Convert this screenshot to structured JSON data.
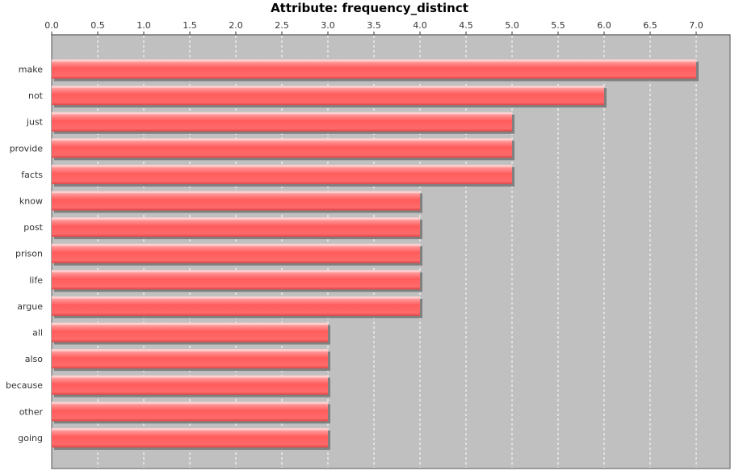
{
  "chart_data": {
    "type": "bar",
    "orientation": "horizontal",
    "title": "Attribute: frequency_distinct",
    "xlabel": "",
    "ylabel": "",
    "xlim": [
      0,
      7.0
    ],
    "x_ticks": [
      "0.0",
      "0.5",
      "1.0",
      "1.5",
      "2.0",
      "2.5",
      "3.0",
      "3.5",
      "4.0",
      "4.5",
      "5.0",
      "5.5",
      "6.0",
      "6.5",
      "7.0"
    ],
    "grid": true,
    "categories": [
      "make",
      "not",
      "just",
      "provide",
      "facts",
      "know",
      "post",
      "prison",
      "life",
      "argue",
      "all",
      "also",
      "because",
      "other",
      "going"
    ],
    "values": [
      7,
      6,
      5,
      5,
      5,
      4,
      4,
      4,
      4,
      4,
      3,
      3,
      3,
      3,
      3
    ],
    "colors": {
      "plot_background": "#c0c0c0",
      "bar": "#ff5a5a",
      "bar_highlight": "#ffd0d0",
      "bar_shadow": "#808080",
      "grid": "#ffffff"
    }
  }
}
